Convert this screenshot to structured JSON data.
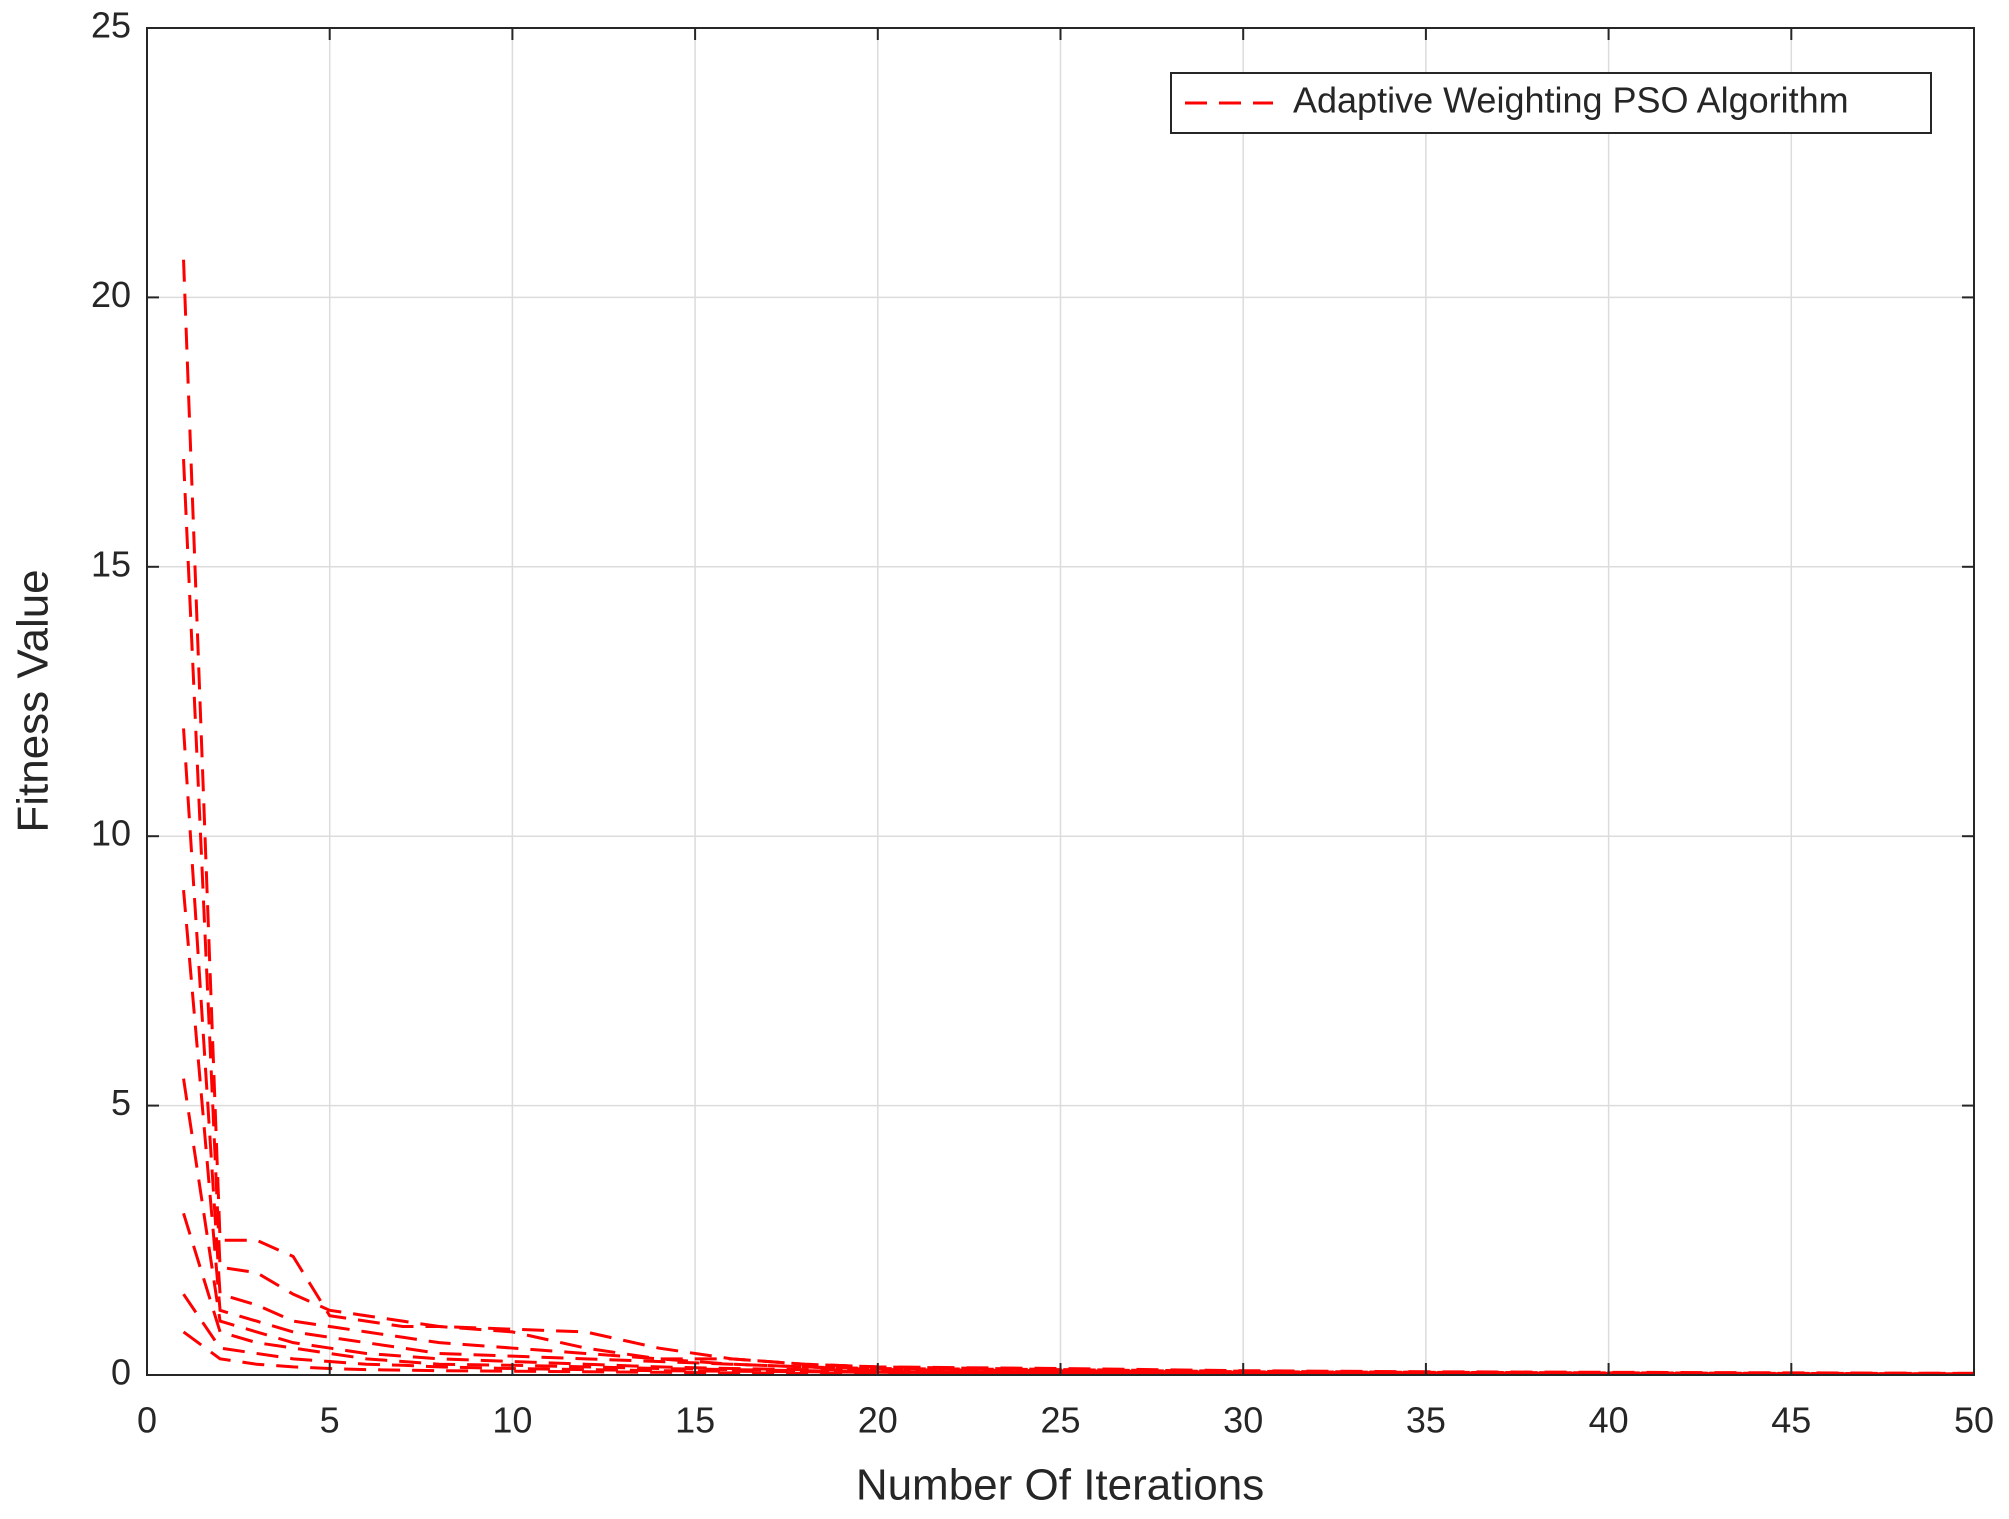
{
  "chart_data": {
    "type": "line",
    "xlabel": "Number Of Iterations",
    "ylabel": "Fitness Value",
    "x": [
      1,
      2,
      3,
      4,
      5,
      6,
      7,
      8,
      10,
      12,
      14,
      16,
      18,
      20,
      25,
      30,
      35,
      40,
      45,
      50
    ],
    "series": [
      {
        "name": "Adaptive Weighting PSO Algorithm",
        "color": "#ff0000",
        "values": [
          20.7,
          2.5,
          2.5,
          2.2,
          1.1,
          1.0,
          0.9,
          0.9,
          0.8,
          0.5,
          0.3,
          0.3,
          0.2,
          0.15,
          0.12,
          0.08,
          0.06,
          0.05,
          0.04,
          0.03
        ]
      },
      {
        "color": "#ff0000",
        "values": [
          17,
          2.0,
          1.9,
          1.5,
          1.2,
          1.1,
          1.0,
          0.9,
          0.85,
          0.8,
          0.5,
          0.3,
          0.2,
          0.15,
          0.1,
          0.07,
          0.05,
          0.04,
          0.03,
          0.02
        ]
      },
      {
        "color": "#ff0000",
        "values": [
          12,
          1.5,
          1.3,
          1.0,
          0.9,
          0.8,
          0.7,
          0.6,
          0.5,
          0.4,
          0.3,
          0.2,
          0.15,
          0.12,
          0.1,
          0.06,
          0.05,
          0.04,
          0.03,
          0.03
        ]
      },
      {
        "color": "#ff0000",
        "values": [
          9,
          1.2,
          1.0,
          0.8,
          0.7,
          0.6,
          0.5,
          0.4,
          0.35,
          0.3,
          0.25,
          0.2,
          0.15,
          0.1,
          0.08,
          0.05,
          0.04,
          0.03,
          0.02,
          0.02
        ]
      },
      {
        "color": "#ff0000",
        "values": [
          5.5,
          1.0,
          0.8,
          0.6,
          0.5,
          0.4,
          0.35,
          0.3,
          0.25,
          0.2,
          0.15,
          0.12,
          0.1,
          0.08,
          0.06,
          0.04,
          0.03,
          0.02,
          0.02,
          0.01
        ]
      },
      {
        "color": "#ff0000",
        "values": [
          3,
          0.8,
          0.6,
          0.5,
          0.4,
          0.3,
          0.25,
          0.2,
          0.18,
          0.15,
          0.12,
          0.1,
          0.08,
          0.06,
          0.05,
          0.03,
          0.02,
          0.02,
          0.01,
          0.01
        ]
      },
      {
        "color": "#ff0000",
        "values": [
          1.5,
          0.5,
          0.4,
          0.3,
          0.25,
          0.2,
          0.18,
          0.15,
          0.12,
          0.1,
          0.08,
          0.07,
          0.06,
          0.05,
          0.04,
          0.03,
          0.02,
          0.01,
          0.01,
          0.01
        ]
      },
      {
        "color": "#ff0000",
        "values": [
          0.8,
          0.3,
          0.2,
          0.15,
          0.12,
          0.1,
          0.09,
          0.08,
          0.07,
          0.06,
          0.05,
          0.04,
          0.03,
          0.03,
          0.02,
          0.02,
          0.01,
          0.01,
          0.01,
          0.01
        ]
      }
    ],
    "line_style": "dashed",
    "xlim": [
      0,
      50
    ],
    "xticks": [
      0,
      5,
      10,
      15,
      20,
      25,
      30,
      35,
      40,
      45,
      50
    ],
    "ylim": [
      0,
      25
    ],
    "yticks": [
      0,
      5,
      10,
      15,
      20,
      25
    ],
    "grid": true,
    "legend": "northeast"
  }
}
